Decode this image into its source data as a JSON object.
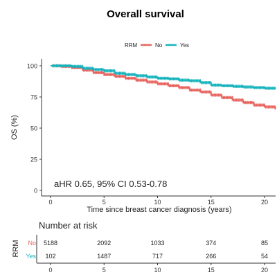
{
  "chart_data": {
    "type": "line",
    "title": "Overall survival",
    "legend": {
      "title": "RRM",
      "placement": "top",
      "entries": [
        {
          "name": "No",
          "color": "#e8645f"
        },
        {
          "name": "Yes",
          "color": "#17b3bd"
        }
      ]
    },
    "xlabel": "Time since breast cancer diagnosis (years)",
    "ylabel": "OS (%)",
    "xlim": [
      0,
      21
    ],
    "ylim": [
      0,
      100
    ],
    "xticks": [
      "0",
      "5",
      "10",
      "15",
      "20"
    ],
    "yticks": [
      "0",
      "25",
      "50",
      "75",
      "100"
    ],
    "grid": false,
    "annotation": "aHR 0.65, 95% CI 0.53-0.78",
    "series": [
      {
        "name": "No",
        "color": "#e8645f",
        "x": [
          0,
          1,
          2,
          3,
          4,
          5,
          6,
          7,
          8,
          9,
          10,
          11,
          12,
          13,
          14,
          15,
          16,
          17,
          18,
          19,
          20,
          21
        ],
        "y": [
          100,
          99.5,
          98.5,
          96.5,
          94.5,
          93,
          91.5,
          90,
          88.5,
          87,
          85.5,
          84,
          82.5,
          80.5,
          79,
          76.5,
          74.5,
          72.5,
          70.5,
          68.5,
          67,
          65
        ]
      },
      {
        "name": "Yes",
        "color": "#17b3bd",
        "x": [
          0,
          1,
          2,
          3,
          4,
          5,
          6,
          7,
          8,
          9,
          10,
          11,
          12,
          13,
          14,
          15,
          16,
          17,
          18,
          19,
          20,
          21
        ],
        "y": [
          100,
          100,
          99.5,
          98,
          97,
          96,
          94,
          93,
          92,
          91,
          90,
          89.5,
          88.5,
          88,
          86.5,
          84.5,
          84,
          83.5,
          83,
          82.5,
          82,
          81.5
        ]
      }
    ]
  },
  "risk_table": {
    "title": "Number at risk",
    "strata_label": "RRM",
    "rows": [
      {
        "name": "No",
        "color": "#e8645f",
        "values": [
          "5188",
          "2092",
          "1033",
          "374",
          "85"
        ]
      },
      {
        "name": "Yes",
        "color": "#17b3bd",
        "values": [
          "102",
          "1487",
          "717",
          "266",
          "54"
        ]
      }
    ],
    "xticks": [
      "0",
      "5",
      "10",
      "15",
      "20"
    ],
    "x_values": [
      0,
      5,
      10,
      15,
      20
    ]
  }
}
